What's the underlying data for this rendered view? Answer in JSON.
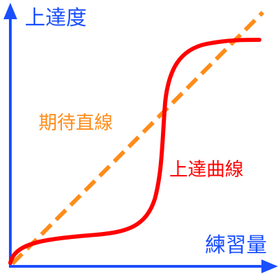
{
  "y_axis_label": "上達度",
  "x_axis_label": "練習量",
  "expected_line_label": "期待直線",
  "actual_curve_label": "上達曲線",
  "colors": {
    "axis": "#1a4fff",
    "expected_line": "#ff8c1a",
    "actual_curve": "#ff0000"
  }
}
